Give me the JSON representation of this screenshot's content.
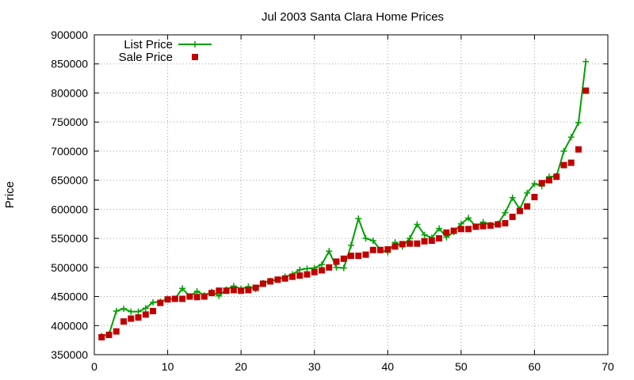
{
  "chart_data": {
    "type": "line",
    "title": "Jul 2003 Santa Clara Home Prices",
    "xlabel": "",
    "ylabel": "Price",
    "xlim": [
      0,
      70
    ],
    "ylim": [
      350000,
      900000
    ],
    "xticks": [
      0,
      10,
      20,
      30,
      40,
      50,
      60,
      70
    ],
    "yticks": [
      350000,
      400000,
      450000,
      500000,
      550000,
      600000,
      650000,
      700000,
      750000,
      800000,
      850000,
      900000
    ],
    "grid": true,
    "legend_position": "top-left",
    "x": [
      1,
      2,
      3,
      4,
      5,
      6,
      7,
      8,
      9,
      10,
      11,
      12,
      13,
      14,
      15,
      16,
      17,
      18,
      19,
      20,
      21,
      22,
      23,
      24,
      25,
      26,
      27,
      28,
      29,
      30,
      31,
      32,
      33,
      34,
      35,
      36,
      37,
      38,
      39,
      40,
      41,
      42,
      43,
      44,
      45,
      46,
      47,
      48,
      49,
      50,
      51,
      52,
      53,
      54,
      55,
      56,
      57,
      58,
      59,
      60,
      61,
      62,
      63,
      64,
      65,
      66,
      67
    ],
    "series": [
      {
        "name": "List Price",
        "style": "linespoints",
        "color": "#00a000",
        "values": [
          382000,
          385000,
          425000,
          429000,
          424000,
          424000,
          430000,
          440000,
          441000,
          446000,
          446000,
          464000,
          450000,
          459000,
          452000,
          458000,
          451000,
          462000,
          468000,
          463000,
          467000,
          463000,
          473000,
          477000,
          479000,
          484000,
          488000,
          496000,
          498000,
          499000,
          505000,
          528000,
          500000,
          499000,
          538000,
          584000,
          550000,
          546000,
          530000,
          526000,
          543000,
          536000,
          550000,
          574000,
          556000,
          551000,
          567000,
          552000,
          561000,
          575000,
          585000,
          570000,
          578000,
          573000,
          575000,
          594000,
          620000,
          600000,
          628000,
          644000,
          640000,
          656000,
          657000,
          700000,
          724000,
          749000,
          854000
        ]
      },
      {
        "name": "Sale Price",
        "style": "points",
        "color": "#c00000",
        "values": [
          380000,
          384000,
          390000,
          407000,
          412000,
          414000,
          419000,
          425000,
          439000,
          445000,
          446000,
          446000,
          450000,
          449000,
          450000,
          456000,
          460000,
          460000,
          461000,
          460000,
          461000,
          465000,
          472000,
          476000,
          479000,
          481000,
          484000,
          486000,
          488000,
          492000,
          495000,
          500000,
          510000,
          515000,
          520000,
          520000,
          522000,
          530000,
          530000,
          531000,
          536000,
          540000,
          541000,
          541000,
          545000,
          546000,
          550000,
          560000,
          563000,
          566000,
          566000,
          570000,
          571000,
          572000,
          574000,
          576000,
          587000,
          597000,
          605000,
          621000,
          645000,
          650000,
          656000,
          676000,
          680000,
          703000,
          804000
        ]
      }
    ]
  }
}
